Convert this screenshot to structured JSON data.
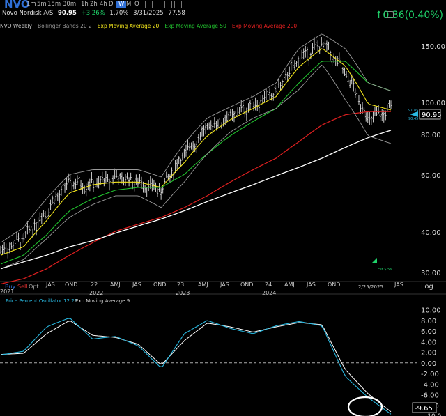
{
  "header": {
    "timeframes": [
      "1m",
      "5m",
      "15m",
      "30m",
      "1h",
      "2h",
      "4h",
      "D",
      "W",
      "M",
      "Q"
    ],
    "selected_timeframe": "W",
    "symbol": "NVO",
    "name": "Novo Nordisk A/S",
    "last": "90.95",
    "change_pct": "+3.26%",
    "volume_pct": "1.70%",
    "date": "3/31/2025",
    "other_value": "77.58",
    "change_display": "0.36(0.40%)"
  },
  "indicators": [
    {
      "label": "NVO Weekly",
      "color": "#cccccc"
    },
    {
      "label": "Bollinger Bands 20 2",
      "color": "#999999"
    },
    {
      "label": "Exp Moving Average 20",
      "color": "#f3e61c"
    },
    {
      "label": "Exp Moving Average 50",
      "color": "#21c12e"
    },
    {
      "label": "Exp Moving Average 200",
      "color": "#e02020"
    }
  ],
  "trade_buttons": {
    "buy": "Buy",
    "sell": "Sell",
    "opt": "Opt"
  },
  "price_axis": {
    "ticks": [
      "150.00",
      "100.00",
      "80.00",
      "60.00",
      "40.00",
      "30.00"
    ],
    "last_label": "90.95",
    "small_labels": [
      "91.85",
      "90.45"
    ],
    "log_label": "Log"
  },
  "time_axis": {
    "labels": [
      "2021",
      "JAS",
      "OND",
      "22",
      "AMJ",
      "JAS",
      "OND",
      "23",
      "AMJ",
      "JAS",
      "OND",
      "24",
      "AMJ",
      "JAS",
      "OND",
      "2/25/2025",
      "JAS"
    ],
    "years": [
      "2022",
      "2023",
      "2024"
    ]
  },
  "earnings_label": "Est $.56",
  "oscillator": {
    "legend": [
      "Price Percent Oscillator 12 26",
      "Exp Moving Average 9"
    ],
    "ticks": [
      "10.00",
      "8.00",
      "6.00",
      "4.00",
      "2.00",
      "0.00",
      "-2.00",
      "-4.00",
      "-6.00",
      "-8.00"
    ],
    "last_label": "-9.65",
    "clipped_label": "-10.0"
  },
  "colors": {
    "accent": "#2f6fd6",
    "up": "#1fd36a",
    "bars": "#e0e0e0",
    "bollinger": "#9a9a9a",
    "ema20": "#f3e61c",
    "ema50": "#21c12e",
    "ema200": "#e02020",
    "trendline": "#ffffff",
    "ppo": "#ffffff",
    "ppo_signal": "#29b8e0"
  },
  "chart_data": [
    {
      "type": "line",
      "title": "NVO Weekly",
      "yscale": "log",
      "ylim": [
        28,
        160
      ],
      "x": [
        "2021-01",
        "2021-04",
        "2021-07",
        "2021-10",
        "2022-01",
        "2022-04",
        "2022-07",
        "2022-10",
        "2023-01",
        "2023-04",
        "2023-07",
        "2023-10",
        "2024-01",
        "2024-04",
        "2024-07",
        "2024-10",
        "2025-01",
        "2025-03"
      ],
      "series": [
        {
          "name": "NVO Weekly",
          "kind": "price",
          "values": [
            34,
            37,
            45,
            55,
            54,
            57,
            55,
            52,
            67,
            80,
            87,
            95,
            103,
            130,
            145,
            118,
            85,
            90.95
          ]
        },
        {
          "name": "Exp Moving Average 20",
          "values": [
            33,
            35,
            42,
            51,
            54,
            55,
            55,
            53,
            63,
            76,
            85,
            92,
            100,
            123,
            140,
            124,
            95,
            91
          ]
        },
        {
          "name": "Exp Moving Average 50",
          "values": [
            31,
            33,
            38,
            45,
            49,
            52,
            53,
            53,
            58,
            67,
            76,
            84,
            92,
            110,
            128,
            128,
            110,
            104
          ]
        },
        {
          "name": "Exp Moving Average 200",
          "values": [
            27,
            28,
            30,
            33,
            36,
            39,
            41,
            43,
            46,
            50,
            55,
            60,
            65,
            73,
            82,
            88,
            90,
            90
          ]
        },
        {
          "name": "Bollinger Upper",
          "values": [
            36,
            40,
            49,
            58,
            60,
            60,
            60,
            57,
            72,
            86,
            93,
            100,
            110,
            140,
            155,
            140,
            110,
            104
          ]
        },
        {
          "name": "Bollinger Lower",
          "values": [
            30,
            32,
            37,
            43,
            47,
            50,
            50,
            46,
            55,
            67,
            78,
            86,
            92,
            105,
            125,
            98,
            76,
            72
          ]
        },
        {
          "name": "Trendline",
          "values": [
            30,
            31.5,
            33,
            35,
            36.5,
            38.5,
            40.5,
            42.5,
            45,
            48,
            51,
            54,
            57.5,
            61,
            65,
            70,
            75,
            79
          ]
        }
      ]
    },
    {
      "type": "line",
      "title": "Price Percent Oscillator 12 26",
      "ylim": [
        -10,
        11
      ],
      "x": [
        "2021-01",
        "2021-04",
        "2021-07",
        "2021-10",
        "2022-01",
        "2022-04",
        "2022-07",
        "2022-10",
        "2023-01",
        "2023-04",
        "2023-07",
        "2023-10",
        "2024-01",
        "2024-04",
        "2024-07",
        "2024-10",
        "2025-01",
        "2025-03"
      ],
      "series": [
        {
          "name": "Price Percent Oscillator 12 26",
          "values": [
            1.5,
            2.2,
            6.8,
            8.5,
            4.5,
            5.0,
            3.2,
            -1.0,
            5.5,
            8.0,
            6.5,
            5.5,
            7.0,
            7.8,
            7.0,
            -2.5,
            -6.5,
            -9.65
          ]
        },
        {
          "name": "Exp Moving Average 9",
          "values": [
            1.6,
            1.8,
            5.5,
            8.0,
            5.2,
            4.8,
            3.5,
            -0.4,
            4.2,
            7.5,
            6.8,
            5.8,
            6.8,
            7.6,
            7.2,
            -1.2,
            -5.8,
            -9.2
          ]
        }
      ]
    }
  ]
}
